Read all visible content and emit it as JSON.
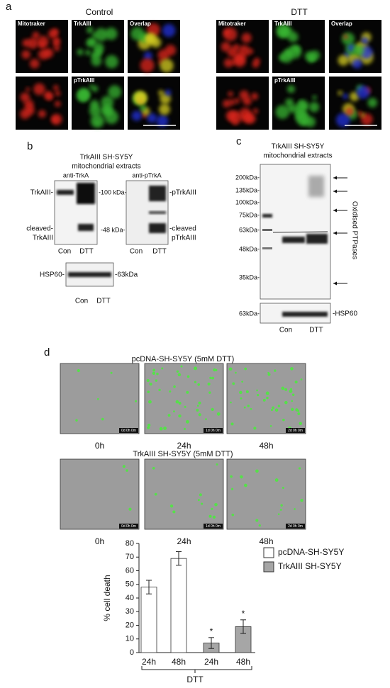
{
  "panel_a": {
    "label": "a",
    "control_title": "Control",
    "dtt_title": "DTT",
    "image_labels": [
      "Mitotraker",
      "TrkAIII",
      "Overlap",
      "pTrkAIII"
    ]
  },
  "panel_b": {
    "label": "b",
    "title_lines": [
      "TrkAIII SH-SY5Y",
      "mitochondrial extracts"
    ],
    "blot_titles": [
      "anti-TrkA",
      "anti-pTrkA"
    ],
    "left_labels": [
      "TrkAIII-",
      "cleaved-",
      "TrkAIII"
    ],
    "markers": [
      "-100 kDa-",
      "-48 kDa-"
    ],
    "right_labels": [
      "-pTrkAIII",
      "-cleaved",
      "pTrkAIII"
    ],
    "lanes": [
      "Con",
      "DTT"
    ],
    "hsp_label": "HSP60-",
    "hsp_marker": "-63kDa"
  },
  "panel_c": {
    "label": "c",
    "title_lines": [
      "TrkAIII SH-SY5Y",
      "mitochondrial extracts"
    ],
    "markers": [
      "200kDa-",
      "135kDa-",
      "100kDa-",
      "75kDa-",
      "63kDa-",
      "48kDa-",
      "35kDa-"
    ],
    "hsp_marker": "63kDa-",
    "side_label": "Oxidised PTPases",
    "hsp_label": "-HSP60",
    "lanes": [
      "Con",
      "DTT"
    ]
  },
  "panel_d": {
    "label": "d",
    "top_title": "pcDNA-SH-SY5Y (5mM DTT)",
    "bottom_title": "TrkAIII SH-SY5Y (5mM DTT)",
    "timepoints": [
      "0h",
      "24h",
      "48h"
    ],
    "timestamps": [
      "0d 0h 0m",
      "1d 0h 0m",
      "2d 0h 0m"
    ]
  },
  "chart_data": {
    "type": "bar",
    "ylabel": "% cell death",
    "xlabel": "DTT",
    "categories": [
      "24h",
      "48h",
      "24h",
      "48h"
    ],
    "series": [
      {
        "name": "pcDNA-SH-SY5Y",
        "color": "#ffffff",
        "values": [
          48,
          69,
          null,
          null
        ],
        "errors": [
          5,
          5,
          null,
          null
        ]
      },
      {
        "name": "TrkAIII SH-SY5Y",
        "color": "#a6a6a6",
        "values": [
          null,
          null,
          7,
          19
        ],
        "errors": [
          null,
          null,
          4,
          5
        ]
      }
    ],
    "significance_labels": [
      null,
      null,
      "*",
      "*"
    ],
    "ylim": [
      0,
      80
    ],
    "yticks": [
      0,
      10,
      20,
      30,
      40,
      50,
      60,
      70,
      80
    ],
    "grid": false
  }
}
